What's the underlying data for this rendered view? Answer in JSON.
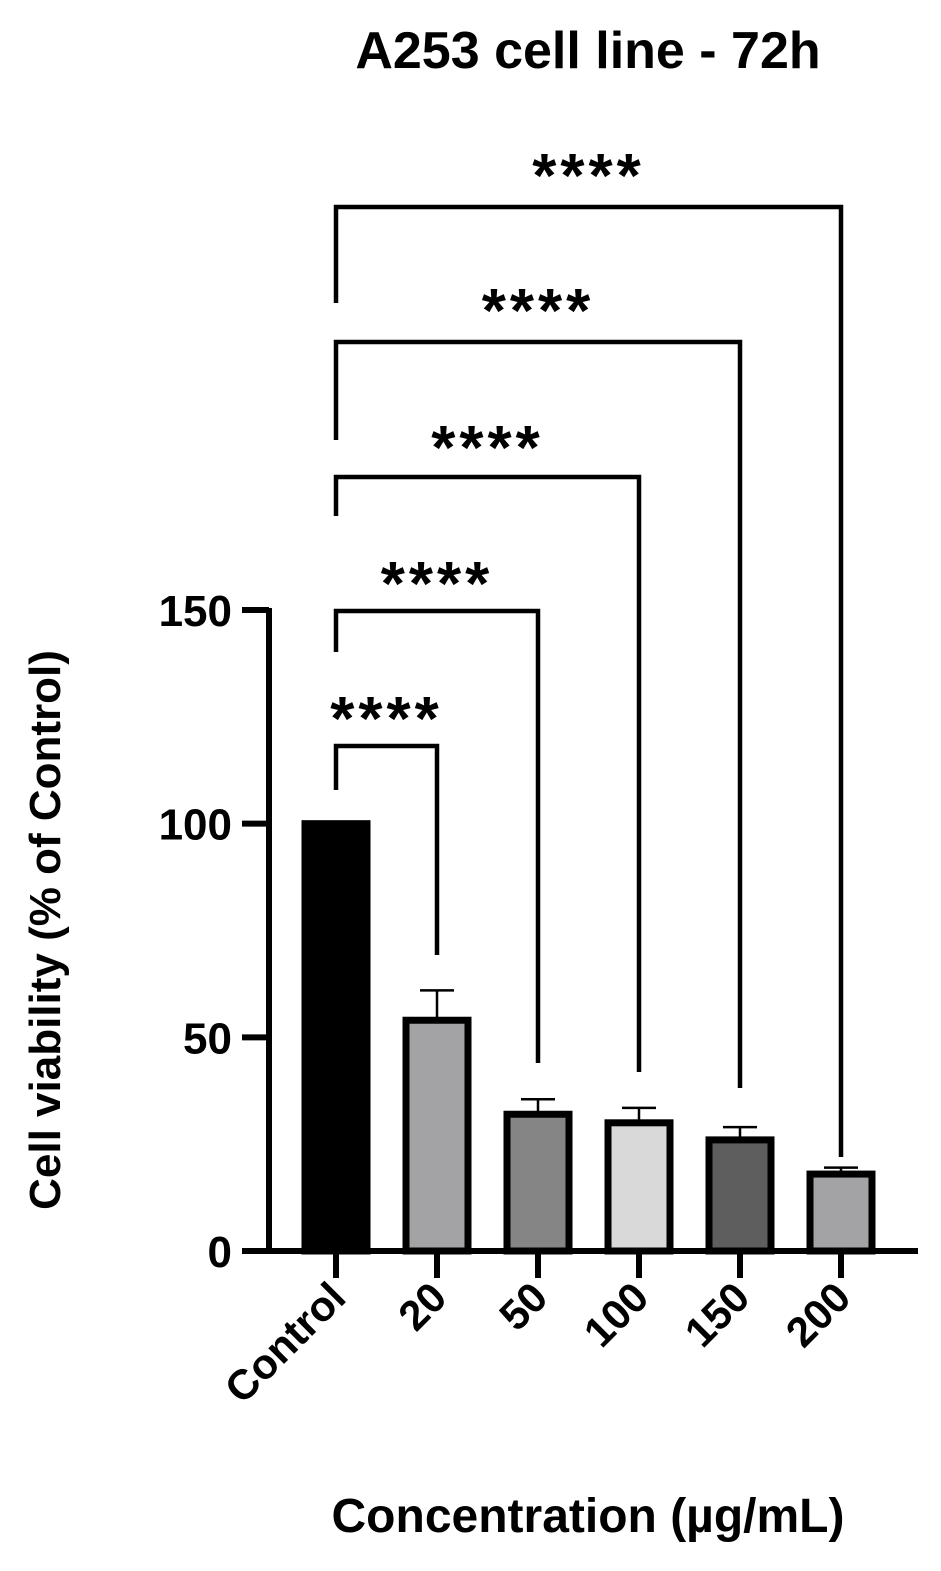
{
  "chart_data": {
    "type": "bar",
    "title": "A253 cell line - 72h",
    "xlabel": "Concentration (µg/mL)",
    "ylabel": "Cell viability (% of Control)",
    "categories": [
      "Control",
      "20",
      "50",
      "100",
      "150",
      "200"
    ],
    "values": [
      100,
      54,
      32,
      30,
      26,
      18
    ],
    "errors": [
      0,
      7,
      3.5,
      3.5,
      3,
      1.5
    ],
    "bar_colors": [
      "#000000",
      "#a3a3a6",
      "#858585",
      "#d9d9d9",
      "#5e5e5e",
      "#a3a3a6"
    ],
    "yticks": [
      0,
      50,
      100,
      150
    ],
    "ytick_labels": [
      "0",
      "50",
      "100",
      "150"
    ],
    "ylim": [
      0,
      150
    ],
    "significance": [
      {
        "from": "Control",
        "to": "20",
        "label": "****"
      },
      {
        "from": "Control",
        "to": "50",
        "label": "****"
      },
      {
        "from": "Control",
        "to": "100",
        "label": "****"
      },
      {
        "from": "Control",
        "to": "150",
        "label": "****"
      },
      {
        "from": "Control",
        "to": "200",
        "label": "****"
      }
    ],
    "grid": false,
    "legend": "none"
  }
}
